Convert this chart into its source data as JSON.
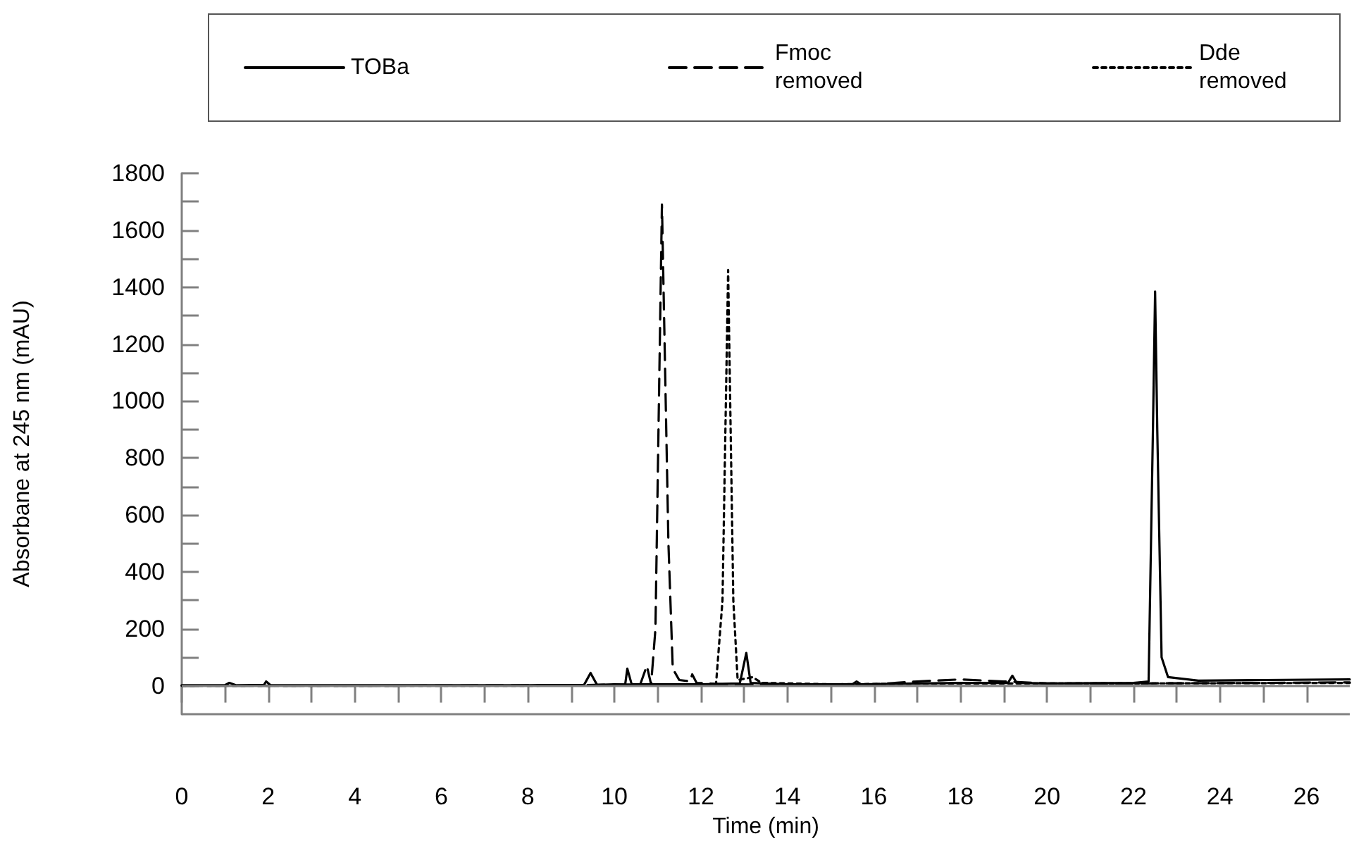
{
  "chart_data": {
    "type": "line",
    "xlabel": "Time (min)",
    "ylabel": "Absorbane at 245 nm (mAU)",
    "xlim": [
      0,
      27
    ],
    "xticks": [
      0,
      {
        "value": 1,
        "label": null
      },
      2,
      {
        "value": 3,
        "label": null
      },
      4,
      {
        "value": 5,
        "label": null
      },
      6,
      {
        "value": 7,
        "label": null
      },
      8,
      {
        "value": 9,
        "label": null
      },
      10,
      {
        "value": 11,
        "label": null
      },
      12,
      {
        "value": 13,
        "label": null
      },
      14,
      {
        "value": 15,
        "label": null
      },
      16,
      {
        "value": 17,
        "label": null
      },
      18,
      {
        "value": 19,
        "label": null
      },
      20,
      {
        "value": 21,
        "label": null
      },
      22,
      {
        "value": 23,
        "label": null
      },
      24,
      {
        "value": 25,
        "label": null
      },
      26
    ],
    "ylim": [
      -100,
      1800
    ],
    "yticks": [
      0,
      {
        "value": 100,
        "label": null
      },
      200,
      {
        "value": 300,
        "label": null
      },
      400,
      {
        "value": 500,
        "label": null
      },
      600,
      {
        "value": 700,
        "label": null
      },
      800,
      {
        "value": 900,
        "label": null
      },
      1000,
      {
        "value": 1100,
        "label": null
      },
      1200,
      {
        "value": 1300,
        "label": null
      },
      1400,
      {
        "value": 1500,
        "label": null
      },
      1600,
      {
        "value": 1700,
        "label": null
      },
      1800
    ],
    "grid": false,
    "legend": "top",
    "marker": "none",
    "ref_lines": [
      {
        "axis": "y",
        "value": 0,
        "color": "#808080"
      }
    ],
    "series": [
      {
        "name": "TOBa",
        "color": "#000000",
        "line_style": "solid",
        "x": [
          0,
          1,
          1.1,
          1.25,
          1.9,
          1.95,
          2.05,
          5,
          8,
          9.3,
          9.45,
          9.6,
          10,
          10.25,
          10.3,
          10.4,
          10.9,
          12,
          12.9,
          13.05,
          13.15,
          14,
          15.5,
          15.6,
          15.7,
          17,
          18,
          19.1,
          19.2,
          19.3,
          20,
          22,
          22.35,
          22.45,
          22.5,
          22.55,
          22.65,
          22.8,
          23.5,
          25,
          27
        ],
        "values": [
          2,
          2,
          10,
          2,
          3,
          15,
          2,
          2,
          2,
          3,
          45,
          3,
          5,
          4,
          60,
          5,
          5,
          5,
          8,
          115,
          10,
          5,
          5,
          15,
          5,
          8,
          10,
          10,
          35,
          10,
          8,
          10,
          15,
          900,
          1385,
          900,
          100,
          30,
          18,
          20,
          22
        ]
      },
      {
        "name": "Fmoc removed",
        "color": "#000000",
        "line_style": "dashed",
        "x": [
          0,
          5,
          9,
          10.6,
          10.75,
          10.85,
          10.95,
          11.1,
          11.25,
          11.35,
          11.5,
          11.75,
          11.8,
          11.9,
          12.5,
          14,
          16,
          17,
          18,
          19,
          20,
          22,
          25,
          27
        ],
        "values": [
          0,
          0,
          2,
          5,
          70,
          5,
          200,
          1690,
          500,
          60,
          20,
          15,
          40,
          10,
          5,
          4,
          5,
          15,
          22,
          15,
          8,
          8,
          10,
          12
        ]
      },
      {
        "name": "Dde removed",
        "color": "#000000",
        "line_style": "dotted",
        "x": [
          0,
          8,
          12,
          12.35,
          12.5,
          12.63,
          12.75,
          12.85,
          13.2,
          13.4,
          15,
          18,
          22,
          27
        ],
        "values": [
          0,
          0,
          2,
          5,
          300,
          1460,
          300,
          20,
          30,
          10,
          5,
          8,
          8,
          10
        ]
      }
    ]
  }
}
